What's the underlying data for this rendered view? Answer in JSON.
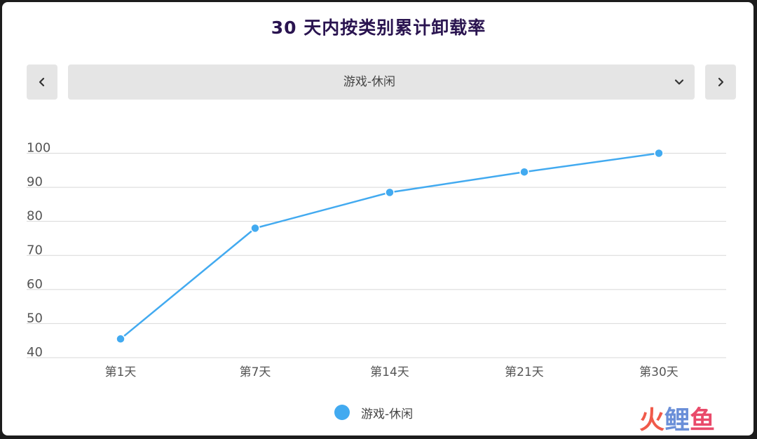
{
  "title": "30 天内按类别累计卸载率",
  "selector": {
    "value": "游戏-休闲",
    "prev_icon": "chevron-left-icon",
    "next_icon": "chevron-right-icon",
    "dropdown_icon": "chevron-down-icon"
  },
  "colors": {
    "series": "#42aaf0",
    "title": "#2a1450",
    "grid": "#d8d8d8",
    "control_bg": "#e5e5e5"
  },
  "watermark": {
    "chars": [
      "火",
      "鲤",
      "鱼"
    ],
    "colors": [
      "#f05a4a",
      "#6a8fd8",
      "#e94a6a"
    ]
  },
  "chart_data": {
    "type": "line",
    "title": "30 天内按类别累计卸载率",
    "categories": [
      "第1天",
      "第7天",
      "第14天",
      "第21天",
      "第30天"
    ],
    "series": [
      {
        "name": "游戏-休闲",
        "values": [
          45.5,
          78,
          88.5,
          94.5,
          100
        ]
      }
    ],
    "ylim": [
      40,
      100
    ],
    "yticks": [
      40,
      50,
      60,
      70,
      80,
      90,
      100
    ],
    "grid": true,
    "legend": "bottom-center"
  }
}
